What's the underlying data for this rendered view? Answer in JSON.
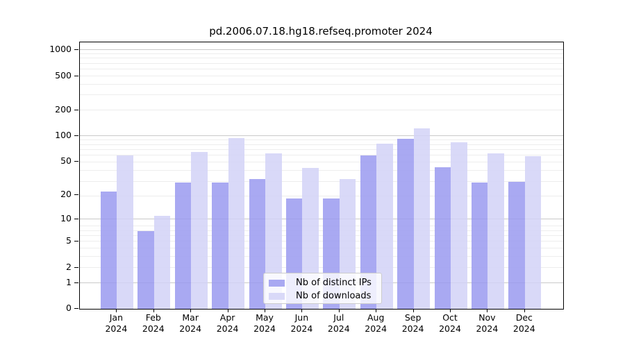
{
  "chart_data": {
    "type": "bar",
    "title": "pd.2006.07.18.hg18.refseq.promoter 2024",
    "categories": [
      "Jan",
      "Feb",
      "Mar",
      "Apr",
      "May",
      "Jun",
      "Jul",
      "Aug",
      "Sep",
      "Oct",
      "Nov",
      "Dec"
    ],
    "x_year": "2024",
    "series": [
      {
        "name": "Nb of distinct IPs",
        "swatch_color": "#a9a9f2",
        "bar_color": "rgba(154,154,240,0.85)",
        "values": [
          22,
          7,
          28,
          28,
          31,
          18,
          18,
          59,
          93,
          43,
          28,
          29
        ]
      },
      {
        "name": "Nb of downloads",
        "swatch_color": "#d9d9f8",
        "bar_color": "rgba(210,210,247,0.85)",
        "values": [
          59,
          11,
          65,
          94,
          62,
          42,
          31,
          81,
          122,
          84,
          62,
          58
        ]
      }
    ],
    "yscale": "log1p",
    "yticks": [
      0,
      1,
      2,
      5,
      10,
      20,
      50,
      100,
      200,
      500,
      1000
    ],
    "ylim": [
      0,
      1230
    ],
    "grid": true,
    "legend_position": "lower center",
    "grid_major_color": "#c9c9c9",
    "grid_minor_color": "#ededed"
  }
}
